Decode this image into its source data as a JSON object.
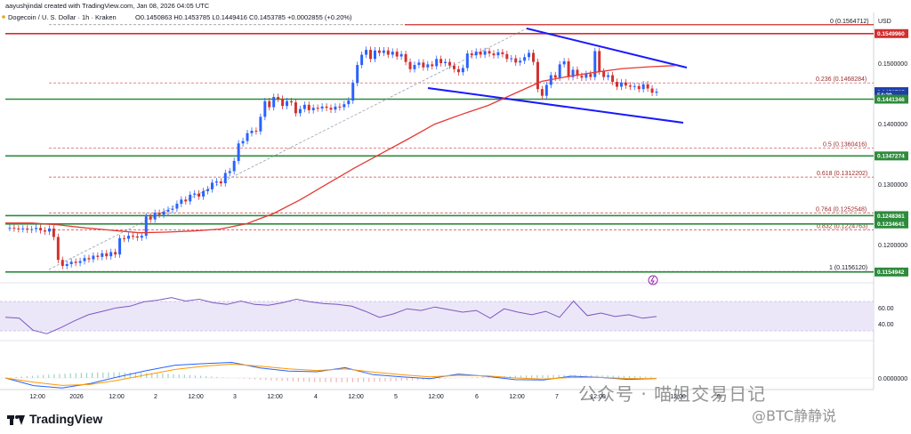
{
  "header": {
    "creator": "aayushjindal created with TradingView.com, Jan 08, 2026 04:05 UTC",
    "symbol_line": "Dogecoin / U. S. Dollar · 1h · Kraken",
    "ohlc": "O0.1450863 H0.1453785 L0.1449416 C0.1453785 +0.0002855 (+0.20%)",
    "currency": "USD"
  },
  "fib_levels": [
    {
      "label": "0 (0.1564712)",
      "value": 0.1564712
    },
    {
      "label": "0.236 (0.1468284)",
      "value": 0.1468284
    },
    {
      "label": "0.5 (0.1360416)",
      "value": 0.1360416
    },
    {
      "label": "0.618 (0.1312202)",
      "value": 0.1312202
    },
    {
      "label": "0.764 (0.1252548)",
      "value": 0.1252548
    },
    {
      "label": "0.832 (0.1224763)",
      "value": 0.1224763
    },
    {
      "label": "1 (0.1156120)",
      "value": 0.115612
    }
  ],
  "price_tags": [
    {
      "label": "0.1549960",
      "value": 0.154996,
      "color": "#d32f2f"
    },
    {
      "label": "0.1453785",
      "value": 0.1453785,
      "color": "#1e3fa8"
    },
    {
      "label": "54:29",
      "value": 0.14487,
      "color": "#1e3fa8"
    },
    {
      "label": "0.1441346",
      "value": 0.1441346,
      "color": "#2e8b3c"
    },
    {
      "label": "0.1347274",
      "value": 0.1347274,
      "color": "#2e8b3c"
    },
    {
      "label": "0.1248361",
      "value": 0.1248361,
      "color": "#2e8b3c"
    },
    {
      "label": "0.1234641",
      "value": 0.1234641,
      "color": "#2e8b3c"
    },
    {
      "label": "0.1154942",
      "value": 0.1154942,
      "color": "#2e8b3c"
    }
  ],
  "rsi_ticks": [
    "60.00",
    "40.00"
  ],
  "macd_ticks": [
    "0.0000000"
  ],
  "x_ticks": [
    "12:00",
    "2026",
    "12:00",
    "2",
    "12:00",
    "3",
    "12:00",
    "4",
    "12:00",
    "5",
    "12:00",
    "6",
    "12:00",
    "7",
    "12:00",
    "12:00",
    "9"
  ],
  "branding": {
    "name": "TradingView"
  },
  "watermark": {
    "line1": "公众号 · 喵姐交易日记",
    "line2": "@BTC静静说"
  },
  "colors": {
    "up": "#2962ff",
    "down": "#d32f2f",
    "ma": "#e53935",
    "trend": "#1a1aff",
    "support": "#2e8b3c",
    "rsi": "#7e57c2"
  },
  "chart_data": {
    "type": "candlestick",
    "title": "Dogecoin / U. S. Dollar · 1h · Kraken",
    "ylim": [
      0.114,
      0.1585
    ],
    "y_ticks": [
      0.12,
      0.13,
      0.14,
      0.15
    ],
    "y_tick_labels": [
      "0.1200000",
      "0.1300000",
      "0.1400000",
      "0.1500000"
    ],
    "close_path": [
      0.1228,
      0.1228,
      0.1227,
      0.1226,
      0.1227,
      0.1225,
      0.1226,
      0.1228,
      0.1224,
      0.1222,
      0.1227,
      0.1213,
      0.1175,
      0.1165,
      0.1168,
      0.1172,
      0.117,
      0.1173,
      0.1178,
      0.1176,
      0.1182,
      0.118,
      0.1186,
      0.1181,
      0.1188,
      0.1184,
      0.1211,
      0.121,
      0.1215,
      0.1214,
      0.1212,
      0.1215,
      0.1247,
      0.1242,
      0.1253,
      0.125,
      0.1255,
      0.1258,
      0.126,
      0.1268,
      0.1275,
      0.1272,
      0.1283,
      0.1285,
      0.128,
      0.1289,
      0.1292,
      0.1303,
      0.1305,
      0.1302,
      0.1319,
      0.1322,
      0.1339,
      0.1368,
      0.1372,
      0.1385,
      0.1389,
      0.1388,
      0.1412,
      0.1438,
      0.1428,
      0.1445,
      0.1442,
      0.143,
      0.1438,
      0.1436,
      0.1418,
      0.1425,
      0.1432,
      0.1423,
      0.1427,
      0.1426,
      0.1429,
      0.1427,
      0.1424,
      0.1429,
      0.1428,
      0.1433,
      0.1439,
      0.1468,
      0.1498,
      0.1515,
      0.1523,
      0.1508,
      0.1522,
      0.1518,
      0.1522,
      0.1515,
      0.152,
      0.1512,
      0.1516,
      0.1503,
      0.1491,
      0.1498,
      0.1502,
      0.1494,
      0.1499,
      0.1496,
      0.1508,
      0.1501,
      0.1503,
      0.1497,
      0.1491,
      0.1486,
      0.1493,
      0.1517,
      0.1514,
      0.152,
      0.1515,
      0.1521,
      0.1517,
      0.1514,
      0.1519,
      0.1516,
      0.1508,
      0.1509,
      0.1502,
      0.1505,
      0.1511,
      0.1518,
      0.1503,
      0.1458,
      0.1447,
      0.1465,
      0.1481,
      0.1477,
      0.1499,
      0.1504,
      0.1478,
      0.149,
      0.148,
      0.1477,
      0.1483,
      0.1478,
      0.1521,
      0.1487,
      0.1478,
      0.1481,
      0.147,
      0.1462,
      0.1469,
      0.1464,
      0.1462,
      0.1463,
      0.1458,
      0.1466,
      0.1459,
      0.1452,
      0.1453785
    ],
    "ma_path": [
      0.1236,
      0.1236,
      0.1233,
      0.1228,
      0.1224,
      0.122,
      0.1221,
      0.1223,
      0.1226,
      0.1235,
      0.1252,
      0.1275,
      0.1301,
      0.1327,
      0.1351,
      0.1375,
      0.14,
      0.1416,
      0.1431,
      0.1451,
      0.1471,
      0.1479,
      0.1486,
      0.1492,
      0.1495,
      0.1497
    ],
    "rsi_ylim": [
      20,
      80
    ],
    "rsi_path": [
      45,
      44,
      30,
      26,
      33,
      41,
      48,
      52,
      56,
      58,
      63,
      65,
      68,
      64,
      66,
      62,
      60,
      64,
      60,
      59,
      62,
      66,
      63,
      61,
      60,
      58,
      52,
      45,
      49,
      55,
      53,
      57,
      54,
      51,
      53,
      44,
      55,
      51,
      48,
      52,
      45,
      64,
      47,
      50,
      46,
      48,
      44,
      46
    ],
    "macd_signal_path": [
      0,
      -0.0008,
      -0.0014,
      -0.0012,
      -0.0004,
      0.0006,
      0.0016,
      0.0022,
      0.0026,
      0.0022,
      0.0017,
      0.0014,
      0.0017,
      0.0011,
      0.0006,
      0.0002,
      0.0005,
      0.0004,
      0.0,
      -0.0002,
      0.0001,
      0.0001,
      -0.0001,
      -0.0001
    ]
  }
}
